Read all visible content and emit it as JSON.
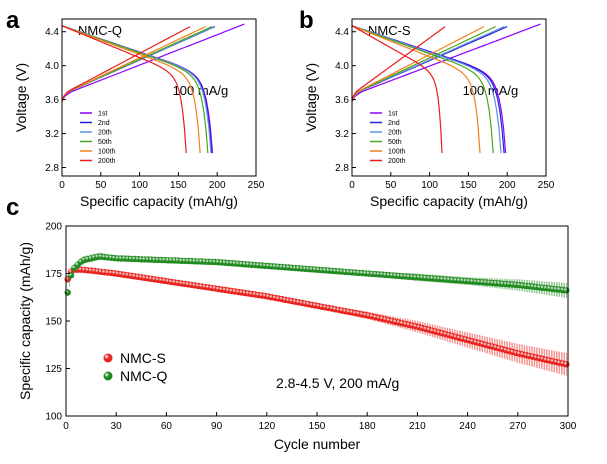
{
  "chart_data": [
    {
      "panel": "a",
      "type": "line",
      "sample": "NMC-Q",
      "annotation": "100 mA/g",
      "xlabel": "Specific capacity (mAh/g)",
      "ylabel": "Voltage (V)",
      "xlim": [
        0,
        250
      ],
      "ylim": [
        2.7,
        4.55
      ],
      "xticks": [
        0,
        50,
        100,
        150,
        200,
        250
      ],
      "yticks": [
        2.8,
        3.2,
        3.6,
        4.0,
        4.4
      ],
      "legend": "bottom-left",
      "series": [
        {
          "name": "1st",
          "color": "#8b00ff",
          "charge": 235,
          "discharge": 194
        },
        {
          "name": "2nd",
          "color": "#1f1fdc",
          "charge": 197,
          "discharge": 193
        },
        {
          "name": "20th",
          "color": "#5f8fe0",
          "charge": 196,
          "discharge": 192
        },
        {
          "name": "50th",
          "color": "#4aa818",
          "charge": 193,
          "discharge": 188
        },
        {
          "name": "100th",
          "color": "#f08020",
          "charge": 185,
          "discharge": 178
        },
        {
          "name": "200th",
          "color": "#e81c1c",
          "charge": 165,
          "discharge": 160
        }
      ]
    },
    {
      "panel": "b",
      "type": "line",
      "sample": "NMC-S",
      "annotation": "100 mA/g",
      "xlabel": "Specific capacity (mAh/g)",
      "ylabel": "Voltage (V)",
      "xlim": [
        0,
        250
      ],
      "ylim": [
        2.7,
        4.55
      ],
      "xticks": [
        0,
        50,
        100,
        150,
        200,
        250
      ],
      "yticks": [
        2.8,
        3.2,
        3.6,
        4.0,
        4.4
      ],
      "legend": "bottom-left",
      "series": [
        {
          "name": "1st",
          "color": "#8b00ff",
          "charge": 243,
          "discharge": 198
        },
        {
          "name": "2nd",
          "color": "#1f1fdc",
          "charge": 200,
          "discharge": 196
        },
        {
          "name": "20th",
          "color": "#5f8fe0",
          "charge": 196,
          "discharge": 192
        },
        {
          "name": "50th",
          "color": "#4aa818",
          "charge": 185,
          "discharge": 182
        },
        {
          "name": "100th",
          "color": "#f08020",
          "charge": 170,
          "discharge": 165
        },
        {
          "name": "200th",
          "color": "#e81c1c",
          "charge": 120,
          "discharge": 116
        }
      ]
    },
    {
      "panel": "c",
      "type": "scatter",
      "annotation": "2.8-4.5 V, 200 mA/g",
      "xlabel": "Cycle number",
      "ylabel": "Specific capacity (mAh/g)",
      "xlim": [
        0,
        300
      ],
      "ylim": [
        100,
        200
      ],
      "xticks": [
        0,
        30,
        60,
        90,
        120,
        150,
        180,
        210,
        240,
        270,
        300
      ],
      "yticks": [
        100,
        125,
        150,
        175,
        200
      ],
      "legend": "center-left",
      "series": [
        {
          "name": "NMC-S",
          "color": "#e8231e",
          "x": [
            1,
            2,
            3,
            5,
            10,
            20,
            30,
            60,
            90,
            120,
            150,
            180,
            210,
            240,
            270,
            300
          ],
          "y": [
            172,
            175,
            176,
            177,
            177,
            176,
            175,
            171,
            167,
            163,
            158,
            153,
            147,
            140,
            133,
            127
          ],
          "err": [
            2,
            2,
            1,
            1,
            1,
            1,
            1,
            1,
            1,
            1,
            1,
            2,
            3,
            4,
            5,
            6
          ]
        },
        {
          "name": "NMC-Q",
          "color": "#1f8a1f",
          "x": [
            1,
            2,
            3,
            5,
            10,
            20,
            30,
            60,
            90,
            120,
            150,
            180,
            210,
            240,
            270,
            300
          ],
          "y": [
            165,
            170,
            174,
            178,
            182,
            184,
            183,
            182,
            181,
            179,
            177,
            175,
            173,
            171,
            169,
            166
          ],
          "err": [
            2,
            2,
            2,
            2,
            2,
            2,
            1,
            1,
            1,
            1,
            1,
            1,
            2,
            2,
            3,
            4
          ]
        }
      ]
    }
  ],
  "panel_letters": [
    "a",
    "b",
    "c"
  ]
}
